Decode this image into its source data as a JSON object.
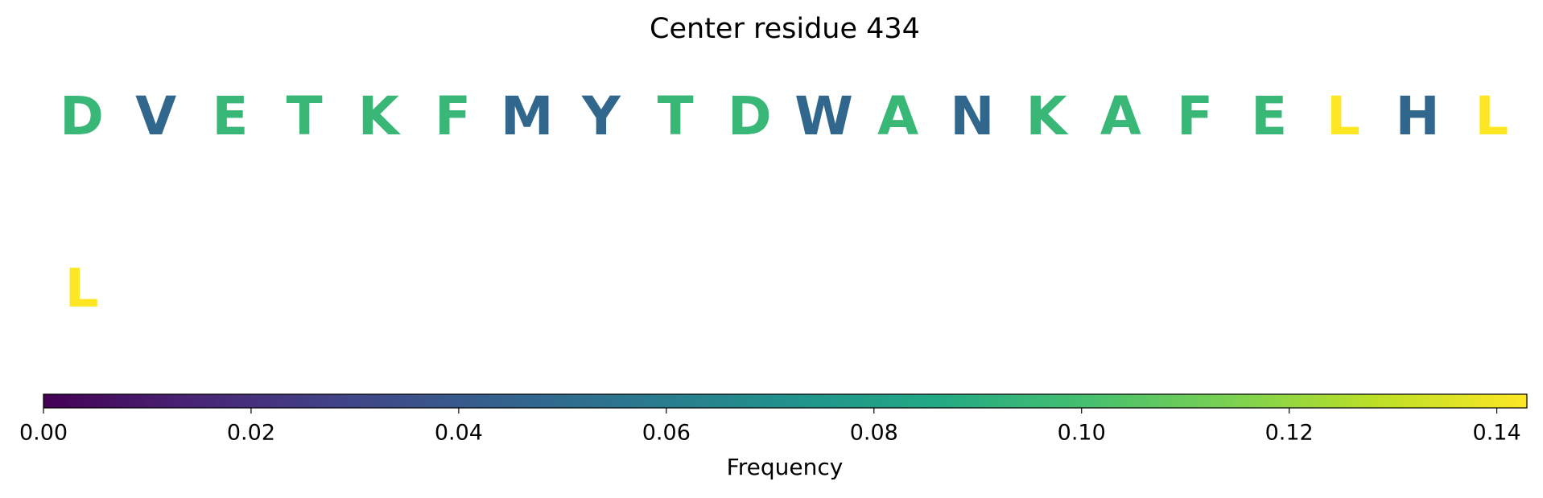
{
  "chart_data": {
    "type": "sequence",
    "title": "Center residue 434",
    "categories": [
      "D",
      "V",
      "E",
      "T",
      "K",
      "F",
      "M",
      "Y",
      "T",
      "D",
      "W",
      "A",
      "N",
      "K",
      "A",
      "F",
      "E",
      "L",
      "H",
      "L",
      "L"
    ],
    "values": [
      0.0952,
      0.0476,
      0.0952,
      0.0952,
      0.0952,
      0.0952,
      0.0476,
      0.0476,
      0.0952,
      0.0952,
      0.0476,
      0.0952,
      0.0476,
      0.0952,
      0.0952,
      0.0952,
      0.0952,
      0.1429,
      0.0476,
      0.1429,
      0.1429
    ],
    "colormap": "viridis",
    "clim": [
      0,
      0.1429
    ],
    "cticks": [
      {
        "value": 0,
        "label": "0.00"
      },
      0.02,
      0.04,
      0.06,
      0.08,
      {
        "value": 0.1,
        "label": "0.10"
      },
      0.12,
      0.14
    ],
    "colorbar_label": "Frequency"
  }
}
